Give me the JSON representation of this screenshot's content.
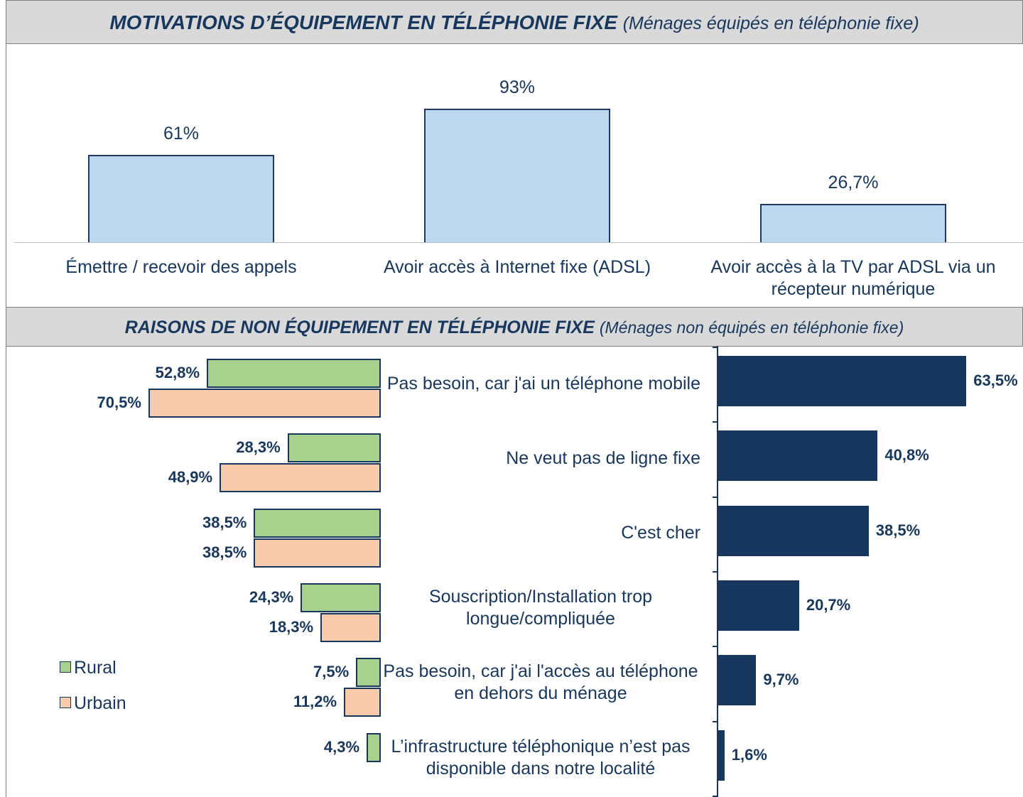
{
  "chart_data": [
    {
      "type": "bar",
      "title": "MOTIVATIONS D’ÉQUIPEMENT EN TÉLÉPHONIE FIXE",
      "subtitle": "(Ménages équipés en téléphonie fixe)",
      "categories": [
        "Émettre / recevoir des  appels",
        "Avoir accès à Internet fixe  (ADSL)",
        "Avoir accès à la TV par ADSL via un récepteur numérique"
      ],
      "values": [
        61,
        93,
        26.7
      ],
      "value_labels": [
        "61%",
        "93%",
        "26,7%"
      ],
      "color": "#bdd7ee",
      "ylim": [
        0,
        100
      ]
    },
    {
      "type": "barh",
      "title": "RAISONS DE NON ÉQUIPEMENT EN TÉLÉPHONIE FIXE",
      "subtitle": "(Ménages non équipés en téléphonie fixe)",
      "categories": [
        "Pas besoin, car j'ai un téléphone mobile",
        "Ne veut pas de ligne fixe",
        "C'est cher",
        "Souscription/Installation trop longue/compliquée",
        "Pas besoin, car j'ai l'accès au téléphone en dehors du ménage",
        "L’infrastructure téléphonique n’est pas disponible dans notre localité"
      ],
      "series": [
        {
          "name": "Rural",
          "color": "#a9d18e",
          "values": [
            52.8,
            28.3,
            38.5,
            24.3,
            7.5,
            4.3
          ],
          "value_labels": [
            "52,8%",
            "28,3%",
            "38,5%",
            "24,3%",
            "7,5%",
            "4,3%"
          ]
        },
        {
          "name": "Urbain",
          "color": "#f8cbad",
          "values": [
            70.5,
            48.9,
            38.5,
            18.3,
            11.2,
            null
          ],
          "value_labels": [
            "70,5%",
            "48,9%",
            "38,5%",
            "18,3%",
            "11,2%",
            null
          ]
        }
      ],
      "xlim": [
        0,
        100
      ],
      "x_inverted": true
    },
    {
      "type": "barh",
      "values": [
        63.5,
        40.8,
        38.5,
        20.7,
        9.7,
        1.6
      ],
      "value_labels": [
        "63,5%",
        "40,8%",
        "38,5%",
        "20,7%",
        "9,7%",
        "1,6%"
      ],
      "color": "#17375e",
      "xlim": [
        0,
        80
      ]
    }
  ]
}
